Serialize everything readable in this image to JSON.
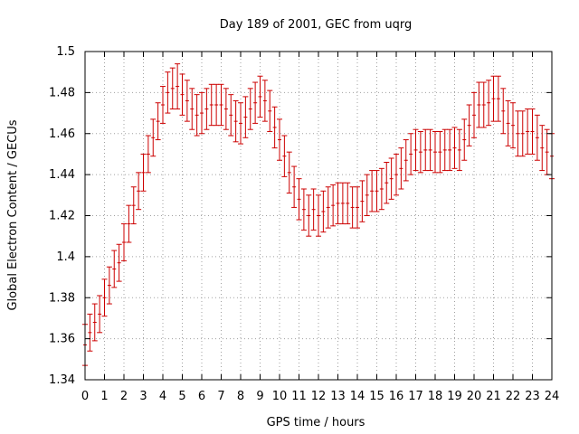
{
  "chart_data": {
    "type": "scatter",
    "title": "Day 189 of 2001, GEC from uqrg",
    "xlabel": "GPS time / hours",
    "ylabel": "Global Electron Content / GECUs",
    "xlim": [
      0,
      24
    ],
    "ylim": [
      1.34,
      1.5
    ],
    "x_ticks": [
      "0",
      "1",
      "2",
      "3",
      "4",
      "5",
      "6",
      "7",
      "8",
      "9",
      "10",
      "11",
      "12",
      "13",
      "14",
      "15",
      "16",
      "17",
      "18",
      "19",
      "20",
      "21",
      "22",
      "23",
      "24"
    ],
    "y_ticks": [
      "1.34",
      "1.36",
      "1.38",
      "1.4",
      "1.42",
      "1.44",
      "1.46",
      "1.48",
      "1.5"
    ],
    "grid": true,
    "error_bars": true,
    "colors": {
      "series": "#cc0000",
      "grid": "#a0a0a0",
      "axis": "#000000"
    },
    "series": [
      {
        "x": [
          0.0,
          0.25,
          0.5,
          0.75,
          1.0,
          1.25,
          1.5,
          1.75,
          2.0,
          2.25,
          2.5,
          2.75,
          3.0,
          3.25,
          3.5,
          3.75,
          4.0,
          4.25,
          4.5,
          4.75,
          5.0,
          5.25,
          5.5,
          5.75,
          6.0,
          6.25,
          6.5,
          6.75,
          7.0,
          7.25,
          7.5,
          7.75,
          8.0,
          8.25,
          8.5,
          8.75,
          9.0,
          9.25,
          9.5,
          9.75,
          10.0,
          10.25,
          10.5,
          10.75,
          11.0,
          11.25,
          11.5,
          11.75,
          12.0,
          12.25,
          12.5,
          12.75,
          13.0,
          13.25,
          13.5,
          13.75,
          14.0,
          14.25,
          14.5,
          14.75,
          15.0,
          15.25,
          15.5,
          15.75,
          16.0,
          16.25,
          16.5,
          16.75,
          17.0,
          17.25,
          17.5,
          17.75,
          18.0,
          18.25,
          18.5,
          18.75,
          19.0,
          19.25,
          19.5,
          19.75,
          20.0,
          20.25,
          20.5,
          20.75,
          21.0,
          21.25,
          21.5,
          21.75,
          22.0,
          22.25,
          22.5,
          22.75,
          23.0,
          23.25,
          23.5,
          23.75,
          24.0
        ],
        "y": [
          1.357,
          1.363,
          1.368,
          1.372,
          1.38,
          1.386,
          1.394,
          1.397,
          1.407,
          1.416,
          1.425,
          1.432,
          1.441,
          1.45,
          1.458,
          1.466,
          1.474,
          1.48,
          1.482,
          1.483,
          1.479,
          1.476,
          1.472,
          1.469,
          1.47,
          1.472,
          1.474,
          1.474,
          1.474,
          1.472,
          1.469,
          1.466,
          1.465,
          1.468,
          1.472,
          1.475,
          1.478,
          1.476,
          1.471,
          1.463,
          1.457,
          1.449,
          1.441,
          1.434,
          1.428,
          1.423,
          1.42,
          1.423,
          1.42,
          1.422,
          1.424,
          1.425,
          1.426,
          1.426,
          1.426,
          1.424,
          1.424,
          1.427,
          1.43,
          1.432,
          1.432,
          1.433,
          1.436,
          1.438,
          1.44,
          1.443,
          1.447,
          1.45,
          1.452,
          1.451,
          1.452,
          1.452,
          1.451,
          1.451,
          1.452,
          1.452,
          1.453,
          1.452,
          1.457,
          1.464,
          1.469,
          1.474,
          1.474,
          1.475,
          1.477,
          1.477,
          1.471,
          1.465,
          1.464,
          1.46,
          1.46,
          1.461,
          1.461,
          1.458,
          1.453,
          1.451,
          1.449
        ],
        "error": [
          0.01,
          0.009,
          0.009,
          0.009,
          0.009,
          0.009,
          0.009,
          0.009,
          0.009,
          0.009,
          0.009,
          0.009,
          0.009,
          0.009,
          0.009,
          0.009,
          0.009,
          0.01,
          0.01,
          0.011,
          0.01,
          0.01,
          0.01,
          0.01,
          0.01,
          0.01,
          0.01,
          0.01,
          0.01,
          0.01,
          0.01,
          0.01,
          0.01,
          0.01,
          0.01,
          0.01,
          0.01,
          0.01,
          0.01,
          0.01,
          0.01,
          0.01,
          0.01,
          0.01,
          0.01,
          0.01,
          0.01,
          0.01,
          0.01,
          0.01,
          0.01,
          0.01,
          0.01,
          0.01,
          0.01,
          0.01,
          0.01,
          0.01,
          0.01,
          0.01,
          0.01,
          0.01,
          0.01,
          0.01,
          0.01,
          0.01,
          0.01,
          0.01,
          0.01,
          0.01,
          0.01,
          0.01,
          0.01,
          0.01,
          0.01,
          0.01,
          0.01,
          0.01,
          0.01,
          0.01,
          0.011,
          0.011,
          0.011,
          0.011,
          0.011,
          0.011,
          0.011,
          0.011,
          0.011,
          0.011,
          0.011,
          0.011,
          0.011,
          0.011,
          0.011,
          0.011,
          0.011
        ]
      }
    ]
  }
}
